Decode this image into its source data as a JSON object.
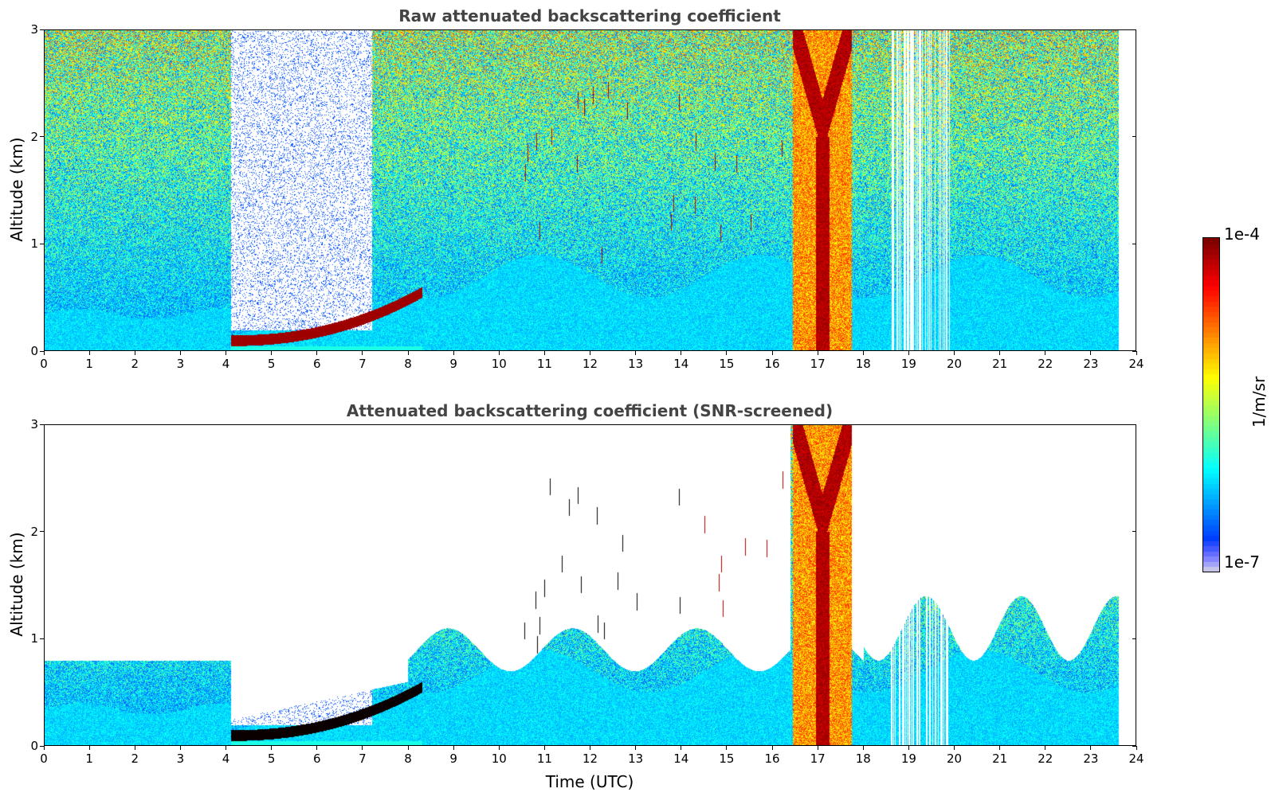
{
  "chart_data": [
    {
      "type": "heatmap",
      "title": "Raw attenuated backscattering coefficient",
      "xlabel": "",
      "ylabel": "Altitude (km)",
      "xlim": [
        0,
        24
      ],
      "ylim": [
        0,
        3
      ],
      "x_ticks": [
        "0",
        "1",
        "2",
        "3",
        "4",
        "5",
        "6",
        "7",
        "8",
        "9",
        "10",
        "11",
        "12",
        "13",
        "14",
        "15",
        "16",
        "17",
        "18",
        "19",
        "20",
        "21",
        "22",
        "23",
        "24"
      ],
      "y_ticks": [
        "0",
        "1",
        "2",
        "3"
      ],
      "data_end_time": 23.6,
      "features": [
        {
          "name": "nocturnal boundary layer aerosol",
          "time": [
            0,
            4.1
          ],
          "altitude_top": 0.4
        },
        {
          "name": "low stratus cloud",
          "time": [
            4.1,
            8.3
          ],
          "altitude": [
            0.05,
            0.55
          ]
        },
        {
          "name": "scattered cumulus clouds",
          "time": [
            10.5,
            16.3
          ],
          "altitude": [
            0.9,
            2.6
          ]
        },
        {
          "name": "precipitation / thick cloud",
          "time": [
            16.5,
            17.8
          ],
          "altitude": [
            0,
            3
          ]
        },
        {
          "name": "data gaps",
          "time": [
            18.6,
            19.9
          ]
        }
      ]
    },
    {
      "type": "heatmap",
      "title": "Attenuated backscattering coefficient (SNR-screened)",
      "xlabel": "Time (UTC)",
      "ylabel": "Altitude (km)",
      "xlim": [
        0,
        24
      ],
      "ylim": [
        0,
        3
      ],
      "x_ticks": [
        "0",
        "1",
        "2",
        "3",
        "4",
        "5",
        "6",
        "7",
        "8",
        "9",
        "10",
        "11",
        "12",
        "13",
        "14",
        "15",
        "16",
        "17",
        "18",
        "19",
        "20",
        "21",
        "22",
        "23",
        "24"
      ],
      "y_ticks": [
        "0",
        "1",
        "2",
        "3"
      ],
      "data_end_time": 23.6
    }
  ],
  "colorbar": {
    "min_label": "1e-7",
    "max_label": "1e-4",
    "unit": "1/m/sr",
    "scale": "log",
    "colormap": "jet"
  }
}
